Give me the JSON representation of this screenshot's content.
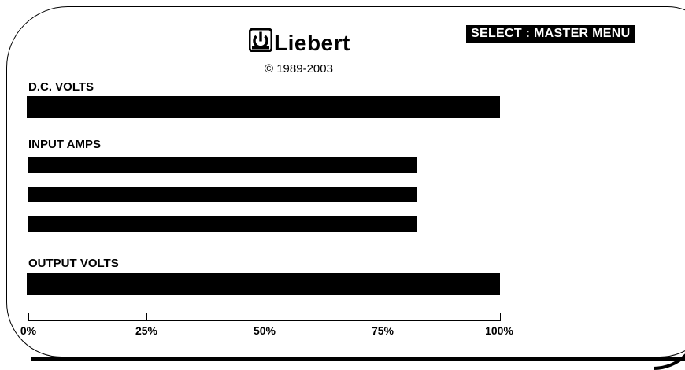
{
  "header": {
    "brand": "Liebert",
    "copyright": "© 1989-2003",
    "menu_hint": "SELECT : MASTER MENU"
  },
  "meters": {
    "dc_volts": {
      "label": "D.C. VOLTS",
      "level_percent": 100
    },
    "input_amps": {
      "label": "INPUT AMPS",
      "phases": [
        {
          "level_percent": 82
        },
        {
          "level_percent": 82
        },
        {
          "level_percent": 82
        }
      ]
    },
    "output_volts": {
      "label": "OUTPUT VOLTS",
      "level_percent": 100
    }
  },
  "scale": {
    "ticks": [
      "0%",
      "25%",
      "50%",
      "75%",
      "100%"
    ]
  },
  "colors": {
    "bar": "#000000",
    "background": "#ffffff",
    "badge_text": "#ffffff"
  }
}
